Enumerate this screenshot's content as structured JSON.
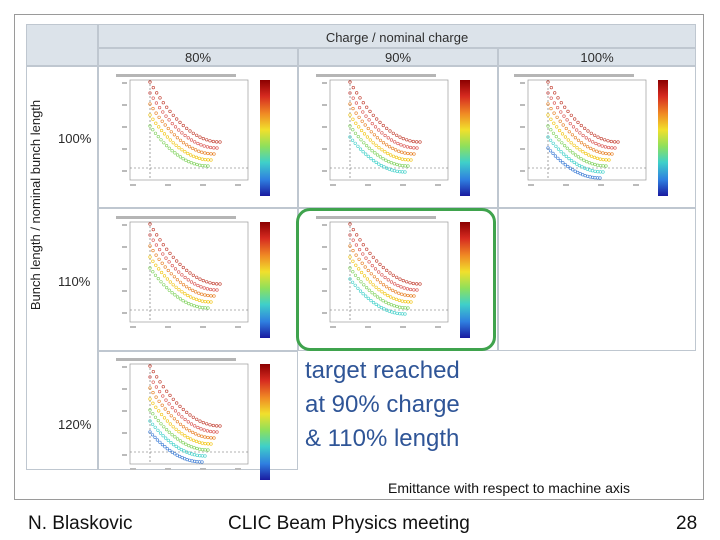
{
  "header": {
    "title": "Charge / nominal charge",
    "columns": [
      "80%",
      "90%",
      "100%"
    ]
  },
  "side_label": "Bunch length / nominal bunch length",
  "rows": [
    "100%",
    "110%",
    "120%"
  ],
  "note_lines": [
    "target reached",
    "at 90% charge",
    "& 110% length"
  ],
  "caption": "Emittance with respect to machine axis",
  "footer": {
    "author": "N. Blaskovic",
    "meeting": "CLIC Beam Physics meeting",
    "page": "28"
  },
  "colors": {
    "header_bg": "#dce3ea",
    "highlight": "#3fa34d",
    "note": "#2f5597"
  },
  "plots": [
    {
      "name": "plot-80-100",
      "present": true
    },
    {
      "name": "plot-90-100",
      "present": true
    },
    {
      "name": "plot-100-100",
      "present": true
    },
    {
      "name": "plot-80-110",
      "present": true
    },
    {
      "name": "plot-90-110",
      "present": true
    },
    {
      "name": "plot-100-110",
      "present": false
    },
    {
      "name": "plot-80-120",
      "present": true
    },
    {
      "name": "plot-90-120",
      "present": false
    },
    {
      "name": "plot-100-120",
      "present": false
    }
  ]
}
